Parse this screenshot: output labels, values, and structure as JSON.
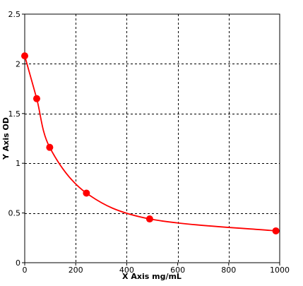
{
  "chart_data": {
    "type": "scatter",
    "title": "",
    "xlabel": "X Axis mg/mL",
    "ylabel": "Y Axis OD",
    "xlim": [
      0,
      1000
    ],
    "ylim": [
      0,
      2.5
    ],
    "xticks": [
      0,
      200,
      400,
      600,
      800,
      1000
    ],
    "xtick_labels": [
      "0",
      "200",
      "400",
      "600",
      "800",
      "1000"
    ],
    "yticks": [
      0,
      0.5,
      1,
      1.5,
      2,
      2.5
    ],
    "ytick_labels": [
      "0",
      "0.5",
      "1",
      "1.5",
      "2",
      "2.5"
    ],
    "grid": true,
    "legend": "none",
    "series": [
      {
        "x": [
          0,
          47,
          98,
          242,
          490,
          985
        ],
        "y": [
          2.08,
          1.65,
          1.16,
          0.7,
          0.44,
          0.32
        ],
        "marker_color": "#ff0000",
        "fit_curve": true,
        "curve_color": "#ff0000"
      }
    ]
  }
}
